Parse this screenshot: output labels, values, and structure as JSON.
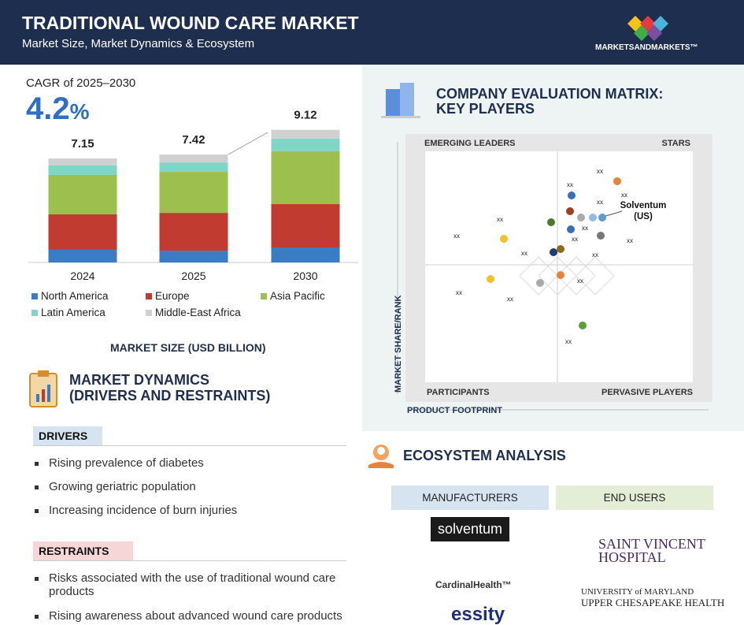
{
  "header": {
    "title": "TRADITIONAL WOUND CARE MARKET",
    "subtitle": "Market Size, Market Dynamics & Ecosystem",
    "brand": "MARKETSANDMARKETS™"
  },
  "cagr": {
    "label": "CAGR of 2025–2030",
    "value": "4.2",
    "unit": "%"
  },
  "chart_data": {
    "type": "bar",
    "stacked": true,
    "title": "MARKET SIZE (USD BILLION)",
    "categories": [
      "2024",
      "2025",
      "2030"
    ],
    "series": [
      {
        "name": "North America",
        "color": "#3b7dc4",
        "values": [
          0.87,
          0.81,
          1.03
        ]
      },
      {
        "name": "Europe",
        "color": "#c23b30",
        "values": [
          2.44,
          2.6,
          2.98
        ]
      },
      {
        "name": "Asia Pacific",
        "color": "#9dbf4e",
        "values": [
          2.71,
          2.82,
          3.64
        ]
      },
      {
        "name": "Latin America",
        "color": "#7fd6c6",
        "values": [
          0.65,
          0.65,
          0.87
        ]
      },
      {
        "name": "Middle-East Africa",
        "color": "#d0d0d0",
        "values": [
          0.48,
          0.54,
          0.6
        ]
      }
    ],
    "total_labels": [
      "7.15",
      "7.42",
      "9.12"
    ]
  },
  "dynamics": {
    "title_line1": "MARKET DYNAMICS",
    "title_line2": "(DRIVERS AND RESTRAINTS)",
    "drivers_label": "DRIVERS",
    "drivers": [
      "Rising prevalence of diabetes",
      "Growing geriatric population",
      "Increasing incidence of burn injuries"
    ],
    "restraints_label": "RESTRAINTS",
    "restraints": [
      "Risks associated with the use of traditional wound care products",
      "Rising awareness about advanced wound care products"
    ]
  },
  "matrix": {
    "title_line1": "COMPANY EVALUATION MATRIX:",
    "title_line2": "KEY PLAYERS",
    "quadrants": [
      "EMERGING LEADERS",
      "STARS",
      "PARTICIPANTS",
      "PERVASIVE PLAYERS"
    ],
    "y_axis": "MARKET SHARE/RANK",
    "x_axis": "PRODUCT FOOTPRINT",
    "highlight": "Solventum",
    "highlight_sub": "(US)",
    "placeholders": [
      "xx",
      "xx",
      "xx",
      "xx",
      "xx",
      "xx",
      "xx",
      "xx",
      "xx",
      "xx",
      "xx",
      "xx",
      "xx",
      "xx",
      "xx"
    ]
  },
  "ecosystem": {
    "title": "ECOSYSTEM ANALYSIS",
    "columns": [
      "MANUFACTURERS",
      "END USERS"
    ],
    "manufacturers": [
      "solventum",
      "CardinalHealth™",
      "essity"
    ],
    "end_users": [
      "SAINT VINCENT",
      "HOSPITAL",
      "UNIVERSITY of MARYLAND",
      "UPPER CHESAPEAKE HEALTH"
    ]
  }
}
